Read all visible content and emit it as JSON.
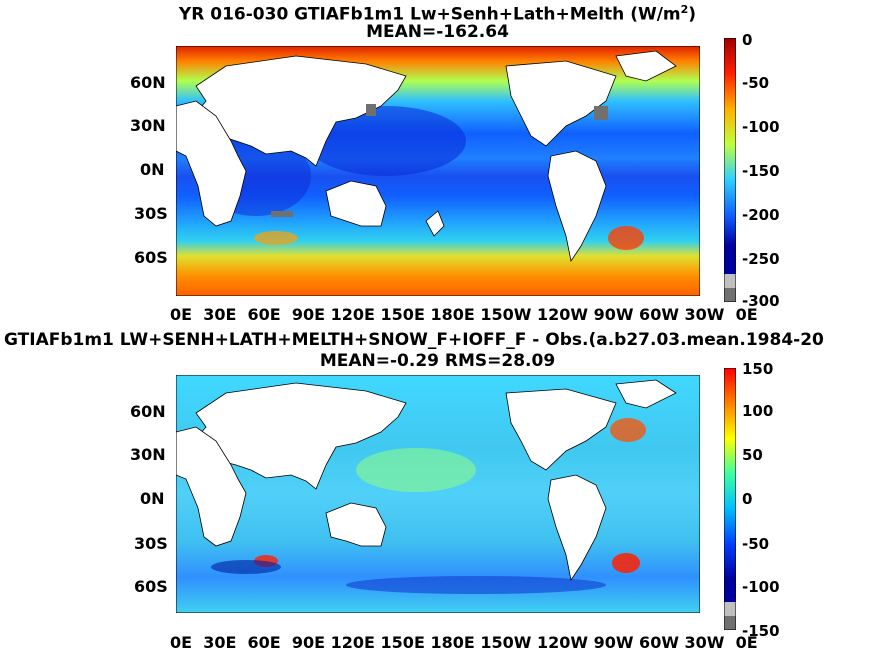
{
  "panels": [
    {
      "id": "top",
      "title_line1_pre": "YR 016-030 GTIAFb1m1 Lw+Senh+Lath+Melth (W/m",
      "title_line1_sup": "2",
      "title_line1_post": ")",
      "title_line2": "MEAN=-162.64",
      "colorbar_ticks": [
        "0",
        "-50",
        "-100",
        "-150",
        "-200",
        "-250",
        "-300"
      ]
    },
    {
      "id": "bottom",
      "title_line1": "GTIAFb1m1 LW+SENH+LATH+MELTH+SNOW_F+IOFF_F - Obs.(a.b27.03.mean.1984-20",
      "title_line2": "MEAN=-0.29 RMS=28.09",
      "colorbar_ticks": [
        "150",
        "100",
        "50",
        "0",
        "-50",
        "-100",
        "-150"
      ]
    }
  ],
  "lat_labels": [
    "60N",
    "30N",
    "0N",
    "30S",
    "60S"
  ],
  "lon_labels_text": "0E  30E  60E  90E 120E 150E 180E 150W 120W 90W 60W 30W  0E",
  "colors": {
    "jet_low": "#00008f",
    "jet_high": "#a00000",
    "land": "#ffffff",
    "coast": "#000000"
  }
}
